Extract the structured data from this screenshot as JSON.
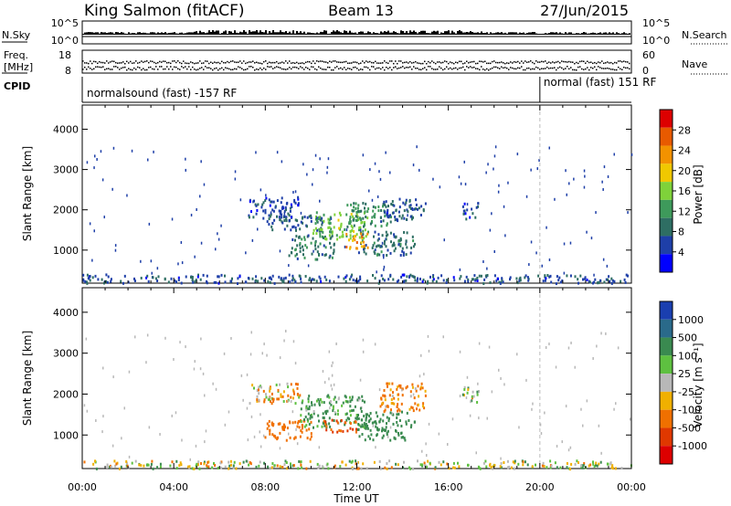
{
  "header": {
    "station": "King Salmon (fitACF)",
    "beam": "Beam 13",
    "date": "27/Jun/2015"
  },
  "side_labels": {
    "nsky": "N.Sky",
    "nsearch": "N.Search",
    "freq_line1": "Freq.",
    "freq_line2": "[MHz]",
    "nave": "Nave",
    "cpid": "CPID",
    "nsky_top": "10^5",
    "nsky_bottom": "10^0",
    "nsearch_top": "10^5",
    "nsearch_bottom": "10^0",
    "freq_top": "18",
    "freq_bottom": "8",
    "nave_top": "60",
    "nave_bottom": "0"
  },
  "cpid": {
    "first": "normalsound (fast) -157 RF",
    "second": "normal (fast) 151 RF",
    "switch_time_hours": 20
  },
  "colors": {
    "power_scale": [
      "#0000ff",
      "#1e3fa8",
      "#2e6e63",
      "#3e9a5b",
      "#7fd23a",
      "#f0c800",
      "#f39200",
      "#e85a00",
      "#dd0000"
    ],
    "velocity_scale": [
      "#1a3fb0",
      "#2a6a8a",
      "#3a8a50",
      "#5ec040",
      "#b8b8b8",
      "#f0b000",
      "#f07000",
      "#e03800",
      "#dd0000"
    ]
  },
  "chart_data": [
    {
      "type": "heatmap",
      "name": "power",
      "ylabel": "Slant Range [km]",
      "y_ticks": [
        1000,
        2000,
        3000,
        4000
      ],
      "ylim": [
        180,
        4600
      ],
      "xlim": [
        0,
        24
      ],
      "colorbar": {
        "label": "Power [dB]",
        "ticks": [
          "4",
          "8",
          "12",
          "16",
          "20",
          "24",
          "28"
        ],
        "range": [
          0,
          30
        ]
      },
      "blobs": [
        {
          "t0": 7.2,
          "t1": 9.5,
          "r0": 1800,
          "r1": 2350,
          "v": 5
        },
        {
          "t0": 8.0,
          "t1": 10.5,
          "r0": 1500,
          "r1": 1900,
          "v": 7
        },
        {
          "t0": 9.0,
          "t1": 11.0,
          "r0": 800,
          "r1": 1400,
          "v": 9
        },
        {
          "t0": 10.0,
          "t1": 12.5,
          "r0": 1300,
          "r1": 2000,
          "v": 14
        },
        {
          "t0": 11.5,
          "t1": 13.5,
          "r0": 1600,
          "r1": 2200,
          "v": 10
        },
        {
          "t0": 12.0,
          "t1": 14.5,
          "r0": 900,
          "r1": 1500,
          "v": 8
        },
        {
          "t0": 13.0,
          "t1": 15.0,
          "r0": 1700,
          "r1": 2300,
          "v": 6
        },
        {
          "t0": 11.5,
          "t1": 12.5,
          "r0": 1050,
          "r1": 1450,
          "v": 22
        },
        {
          "t0": 16.6,
          "t1": 17.3,
          "r0": 1800,
          "r1": 2200,
          "v": 5
        },
        {
          "t0": 0.0,
          "t1": 24.0,
          "r0": 200,
          "r1": 420,
          "v": 6
        }
      ]
    },
    {
      "type": "heatmap",
      "name": "velocity",
      "ylabel": "Slant Range [km]",
      "xlabel": "Time UT",
      "y_ticks": [
        1000,
        2000,
        3000,
        4000
      ],
      "ylim": [
        180,
        4600
      ],
      "xlim": [
        0,
        24
      ],
      "x_ticks": [
        "00:00",
        "04:00",
        "08:00",
        "12:00",
        "16:00",
        "20:00",
        "00:00"
      ],
      "colorbar": {
        "label": "Velocity [m s⁻¹]",
        "ticks": [
          "1000",
          "500",
          "100",
          "25",
          "-25",
          "-100",
          "-500",
          "-1000"
        ],
        "range": [
          -1000,
          1000
        ]
      },
      "blobs": [
        {
          "t0": 7.2,
          "t1": 9.5,
          "r0": 1800,
          "r1": 2300,
          "v": -60
        },
        {
          "t0": 7.8,
          "t1": 10.0,
          "r0": 900,
          "r1": 1400,
          "v": -300
        },
        {
          "t0": 9.5,
          "t1": 12.5,
          "r0": 1200,
          "r1": 2000,
          "v": 150
        },
        {
          "t0": 12.0,
          "t1": 14.5,
          "r0": 900,
          "r1": 1600,
          "v": 300
        },
        {
          "t0": 13.0,
          "t1": 15.0,
          "r0": 1600,
          "r1": 2300,
          "v": -150
        },
        {
          "t0": 10.5,
          "t1": 12.0,
          "r0": 1100,
          "r1": 1400,
          "v": -500
        },
        {
          "t0": 16.6,
          "t1": 17.3,
          "r0": 1800,
          "r1": 2200,
          "v": 0
        },
        {
          "t0": 0.0,
          "t1": 24.0,
          "r0": 200,
          "r1": 400,
          "v": 0
        }
      ]
    }
  ]
}
